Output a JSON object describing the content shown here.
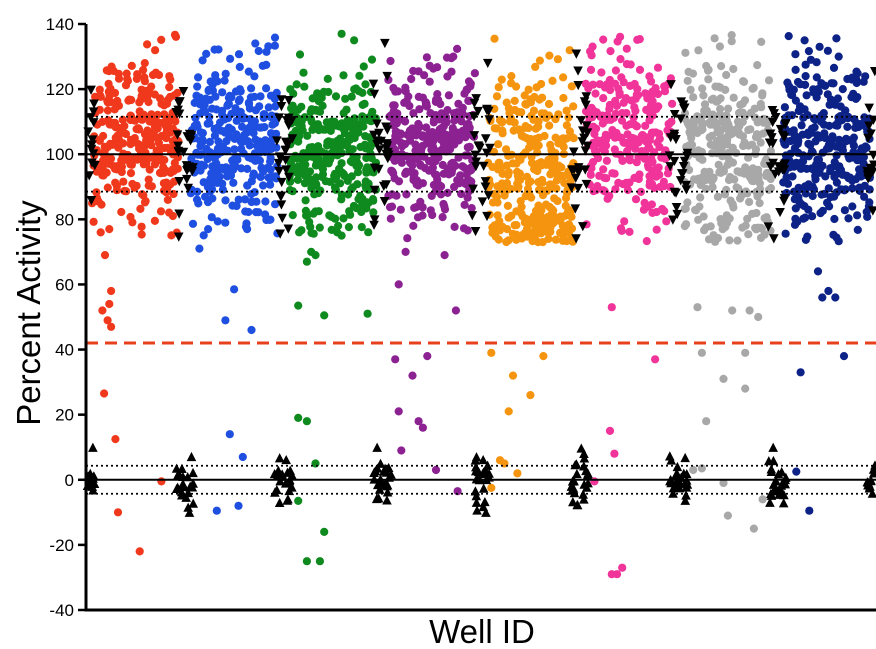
{
  "chart_data": {
    "type": "scatter",
    "xlabel": "Well ID",
    "ylabel": "Percent Activity",
    "ylim": [
      -40,
      140
    ],
    "yticks": [
      -40,
      -20,
      0,
      20,
      40,
      60,
      80,
      100,
      120,
      140
    ],
    "grid": false,
    "legend": "none",
    "reference_lines": [
      {
        "name": "",
        "y": 100,
        "style": "solid",
        "color": "#000000"
      },
      {
        "name": "",
        "y": 111.5,
        "style": "dotted",
        "color": "#000000"
      },
      {
        "name": "",
        "y": 88.5,
        "style": "dotted",
        "color": "#000000"
      },
      {
        "name": "",
        "y": 0,
        "style": "solid",
        "color": "#000000"
      },
      {
        "name": "",
        "y": 4.3,
        "style": "dotted",
        "color": "#000000"
      },
      {
        "name": "",
        "y": -4.3,
        "style": "dotted",
        "color": "#000000"
      },
      {
        "name": "",
        "y": 42,
        "style": "dashed",
        "color": "#e8401c"
      }
    ],
    "series": [
      {
        "plate": 1,
        "color": "#f0391c",
        "n_main": 300,
        "mean": 106,
        "sd": 13,
        "outliers": [
          [
            0.15,
            69
          ],
          [
            0.1,
            76
          ],
          [
            0.2,
            77
          ],
          [
            0.22,
            58
          ],
          [
            0.2,
            54
          ],
          [
            0.12,
            52
          ],
          [
            0.18,
            49
          ],
          [
            0.22,
            47
          ],
          [
            0.14,
            26.5
          ],
          [
            0.27,
            12.5
          ],
          [
            0.3,
            -10
          ],
          [
            0.8,
            -0.5
          ],
          [
            0.55,
            -22
          ]
        ]
      },
      {
        "plate": 2,
        "color": "#1f4fe0",
        "n_main": 300,
        "mean": 104,
        "sd": 11.5,
        "outliers": [
          [
            0.1,
            71
          ],
          [
            0.2,
            77
          ],
          [
            0.65,
            77
          ],
          [
            0.5,
            58.5
          ],
          [
            0.4,
            49
          ],
          [
            0.7,
            46
          ],
          [
            0.45,
            14
          ],
          [
            0.6,
            7
          ],
          [
            0.55,
            -8
          ],
          [
            0.3,
            -9.5
          ]
        ]
      },
      {
        "plate": 3,
        "color": "#0f8a1e",
        "n_main": 300,
        "mean": 101,
        "sd": 12,
        "outliers": [
          [
            0.2,
            67
          ],
          [
            0.3,
            69
          ],
          [
            0.25,
            70
          ],
          [
            0.55,
            76
          ],
          [
            0.6,
            75
          ],
          [
            0.9,
            51
          ],
          [
            0.1,
            53.5
          ],
          [
            0.4,
            50.5
          ],
          [
            0.1,
            19
          ],
          [
            0.2,
            18
          ],
          [
            0.3,
            5
          ],
          [
            0.1,
            -6.5
          ],
          [
            0.4,
            -16
          ],
          [
            0.2,
            -25
          ],
          [
            0.35,
            -25
          ]
        ]
      },
      {
        "plate": 4,
        "color": "#8c2192",
        "n_main": 300,
        "mean": 103,
        "sd": 12,
        "outliers": [
          [
            0.2,
            70
          ],
          [
            0.65,
            69
          ],
          [
            0.12,
            60
          ],
          [
            0.78,
            52
          ],
          [
            0.45,
            38
          ],
          [
            0.08,
            37
          ],
          [
            0.28,
            32
          ],
          [
            0.12,
            21
          ],
          [
            0.35,
            18
          ],
          [
            0.4,
            16
          ],
          [
            0.15,
            9
          ],
          [
            0.55,
            3
          ],
          [
            0.8,
            -3.5
          ]
        ]
      },
      {
        "plate": 5,
        "color": "#f5950f",
        "n_main": 330,
        "mean": 93,
        "sd": 18,
        "outliers": [
          [
            0.05,
            39
          ],
          [
            0.65,
            38
          ],
          [
            0.3,
            32
          ],
          [
            0.5,
            26
          ],
          [
            0.25,
            21
          ],
          [
            0.15,
            6
          ],
          [
            0.2,
            5
          ],
          [
            0.35,
            2
          ],
          [
            0.05,
            -2.5
          ]
        ]
      },
      {
        "plate": 6,
        "color": "#f0349a",
        "n_main": 260,
        "mean": 105,
        "sd": 14,
        "outliers": [
          [
            0.3,
            53
          ],
          [
            0.8,
            37
          ],
          [
            0.28,
            15
          ],
          [
            0.33,
            8
          ],
          [
            0.1,
            -0.5
          ],
          [
            0.3,
            -29
          ],
          [
            0.36,
            -29
          ],
          [
            0.42,
            -27
          ]
        ]
      },
      {
        "plate": 7,
        "color": "#a8a8a8",
        "n_main": 300,
        "mean": 100,
        "sd": 15,
        "outliers": [
          [
            0.15,
            53
          ],
          [
            0.55,
            52
          ],
          [
            0.75,
            52
          ],
          [
            0.85,
            50
          ],
          [
            0.2,
            39
          ],
          [
            0.7,
            39
          ],
          [
            0.45,
            31
          ],
          [
            0.7,
            28
          ],
          [
            0.25,
            18
          ],
          [
            0.2,
            3.5
          ],
          [
            0.1,
            3
          ],
          [
            0.45,
            -1
          ],
          [
            0.5,
            -11
          ],
          [
            0.8,
            -15
          ],
          [
            0.9,
            -6
          ]
        ]
      },
      {
        "plate": 8,
        "color": "#0c2286",
        "n_main": 300,
        "mean": 103,
        "sd": 13,
        "outliers": [
          [
            0.4,
            64
          ],
          [
            0.52,
            58
          ],
          [
            0.45,
            56
          ],
          [
            0.6,
            56
          ],
          [
            0.7,
            38
          ],
          [
            0.2,
            33
          ],
          [
            0.15,
            2.5
          ],
          [
            0.3,
            -9.5
          ]
        ]
      }
    ],
    "controls_high": {
      "marker": "triangle-down",
      "color": "#000000",
      "mean": 100,
      "sd": 12
    },
    "controls_low": {
      "marker": "triangle-up",
      "color": "#000000",
      "mean": 0,
      "sd": 4
    }
  }
}
